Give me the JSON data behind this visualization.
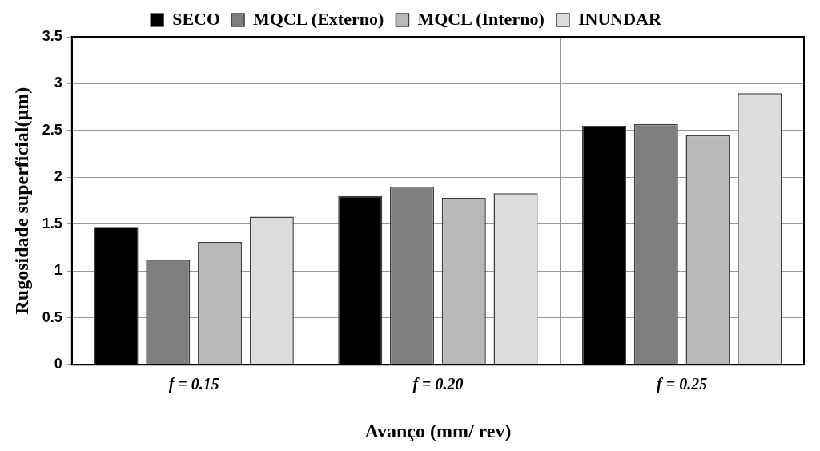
{
  "chart_data": {
    "type": "bar",
    "xlabel": "Avanço (mm/ rev)",
    "ylabel": "Rugosidade superficial(µm)",
    "categories": [
      "f = 0.15",
      "f = 0.20",
      "f = 0.25"
    ],
    "series": [
      {
        "name": "SECO",
        "color": "#000000",
        "values": [
          1.47,
          1.8,
          2.55
        ]
      },
      {
        "name": "MQCL (Externo)",
        "color": "#7f7f7f",
        "values": [
          1.12,
          1.9,
          2.57
        ]
      },
      {
        "name": "MQCL (Interno)",
        "color": "#b8b8b8",
        "values": [
          1.31,
          1.78,
          2.45
        ]
      },
      {
        "name": "INUNDAR",
        "color": "#dcdcdc",
        "values": [
          1.58,
          1.83,
          2.9
        ]
      }
    ],
    "ylim": [
      0,
      3.5
    ],
    "yticks": [
      0,
      0.5,
      1,
      1.5,
      2,
      2.5,
      3,
      3.5
    ],
    "grid": true,
    "legend": "top"
  }
}
